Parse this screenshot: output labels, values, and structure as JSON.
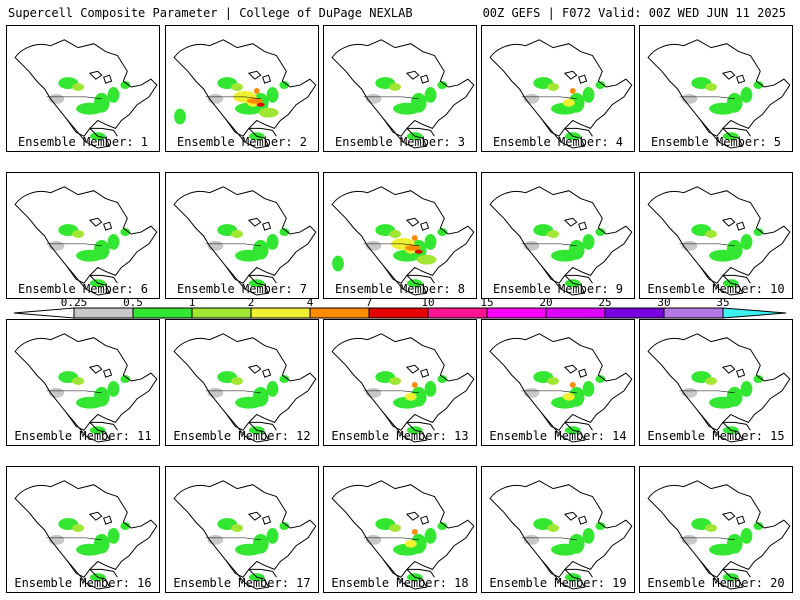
{
  "header": {
    "title": "Supercell Composite Parameter | College of DuPage NEXLAB",
    "valid": "00Z GEFS | F072 Valid: 00Z WED JUN 11 2025"
  },
  "colors": {
    "grey": "#c8c8c8",
    "green": "#32e632",
    "lightgreen": "#a0e632",
    "yellow": "#f0f032",
    "orange": "#ff8c00",
    "red": "#e60000",
    "magenta": "#ff1493",
    "pink": "#ff00ff",
    "violet": "#dc00ff",
    "purple": "#7800dc",
    "lavender": "#b478e6",
    "cyan": "#3cf0f0"
  },
  "colorbar": {
    "ticks": [
      "0.25",
      "0.5",
      "1",
      "2",
      "4",
      "7",
      "10",
      "15",
      "20",
      "25",
      "30",
      "35"
    ],
    "segments": [
      "#c8c8c8",
      "#32e632",
      "#a0e632",
      "#f0f032",
      "#ff8c00",
      "#e60000",
      "#ff1493",
      "#ff00ff",
      "#dc00ff",
      "#7800dc",
      "#b478e6"
    ],
    "end_color": "#3cf0f0"
  },
  "members": [
    {
      "label": "Ensemble Member: 1",
      "intensity": 1
    },
    {
      "label": "Ensemble Member: 2",
      "intensity": 3
    },
    {
      "label": "Ensemble Member: 3",
      "intensity": 1
    },
    {
      "label": "Ensemble Member: 4",
      "intensity": 2
    },
    {
      "label": "Ensemble Member: 5",
      "intensity": 1
    },
    {
      "label": "Ensemble Member: 6",
      "intensity": 1
    },
    {
      "label": "Ensemble Member: 7",
      "intensity": 1
    },
    {
      "label": "Ensemble Member: 8",
      "intensity": 3
    },
    {
      "label": "Ensemble Member: 9",
      "intensity": 1
    },
    {
      "label": "Ensemble Member: 10",
      "intensity": 1
    },
    {
      "label": "Ensemble Member: 11",
      "intensity": 1
    },
    {
      "label": "Ensemble Member: 12",
      "intensity": 1
    },
    {
      "label": "Ensemble Member: 13",
      "intensity": 2
    },
    {
      "label": "Ensemble Member: 14",
      "intensity": 2
    },
    {
      "label": "Ensemble Member: 15",
      "intensity": 1
    },
    {
      "label": "Ensemble Member: 16",
      "intensity": 1
    },
    {
      "label": "Ensemble Member: 17",
      "intensity": 1
    },
    {
      "label": "Ensemble Member: 18",
      "intensity": 2
    },
    {
      "label": "Ensemble Member: 19",
      "intensity": 1
    },
    {
      "label": "Ensemble Member: 20",
      "intensity": 1
    }
  ]
}
